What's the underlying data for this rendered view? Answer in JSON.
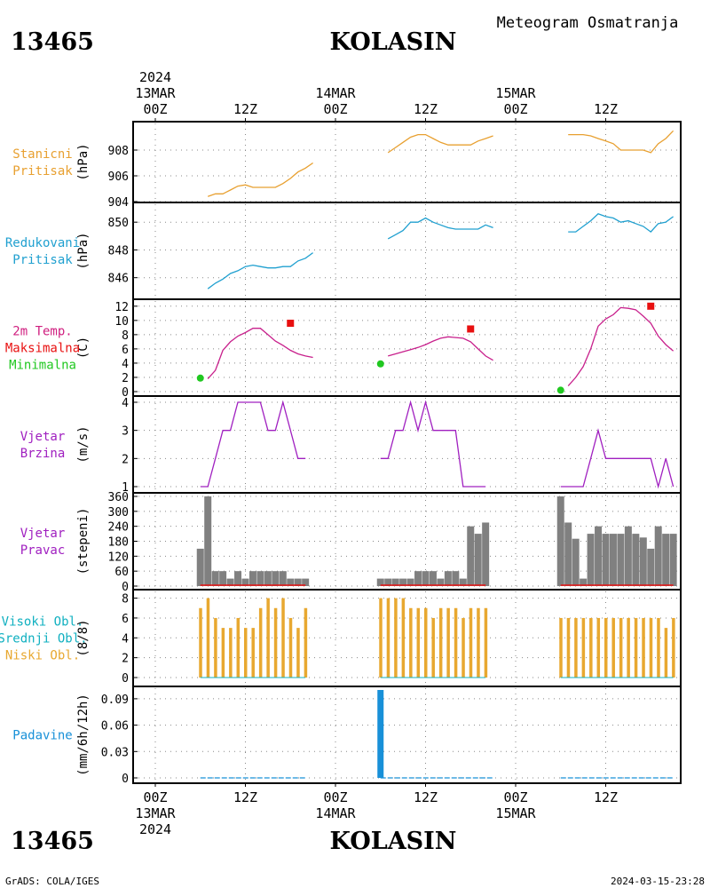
{
  "header": {
    "station_id": "13465",
    "station_name": "KOLASIN",
    "product": "Meteogram Osmatranja"
  },
  "footer": {
    "left": "GrADS: COLA/IGES",
    "right": "2024-03-15-23:28"
  },
  "time_axis": {
    "year": "2024",
    "day_labels": [
      "13MAR",
      "14MAR",
      "15MAR"
    ],
    "hour_labels": [
      "00Z",
      "12Z",
      "00Z",
      "12Z",
      "00Z",
      "12Z"
    ]
  },
  "colors": {
    "pressure_station": "#e8a030",
    "pressure_reduced": "#20a0d0",
    "temperature": "#c8208c",
    "temp_max": "#e81010",
    "temp_min": "#20c820",
    "wind_speed": "#a020c0",
    "wind_dir_bar": "#808080",
    "clouds": "#e8a830",
    "precipitation": "#1890d8"
  },
  "chart_data": [
    {
      "type": "line",
      "panel": "stanicni-pritisak",
      "labels": [
        "Stanicni",
        "Pritisak"
      ],
      "ylabel": "(hPa)",
      "ylim": [
        904,
        910
      ],
      "yticks": [
        904,
        906,
        908
      ],
      "series": [
        {
          "name": "day1",
          "x": [
            7,
            8,
            9,
            10,
            11,
            12,
            13,
            14,
            15,
            16,
            17,
            18,
            19,
            20,
            21
          ],
          "y": [
            904.4,
            904.6,
            904.6,
            904.9,
            905.2,
            905.3,
            905.1,
            905.1,
            905.1,
            905.1,
            905.4,
            905.8,
            906.3,
            906.6,
            907.0
          ]
        },
        {
          "name": "day2",
          "x": [
            31,
            32,
            33,
            34,
            35,
            36,
            37,
            38,
            39,
            40,
            41,
            42,
            43,
            44,
            45
          ],
          "y": [
            907.8,
            908.2,
            908.6,
            909.0,
            909.2,
            909.2,
            908.9,
            908.6,
            908.4,
            908.4,
            908.4,
            908.4,
            908.7,
            908.9,
            909.1
          ]
        },
        {
          "name": "day3",
          "x": [
            55,
            56,
            57,
            58,
            59,
            60,
            61,
            62,
            63,
            64,
            65,
            66,
            67,
            68,
            69
          ],
          "y": [
            909.2,
            909.2,
            909.2,
            909.1,
            908.9,
            908.7,
            908.5,
            908.0,
            908.0,
            908.0,
            908.0,
            907.8,
            908.5,
            908.9,
            909.5
          ]
        }
      ]
    },
    {
      "type": "line",
      "panel": "redukovani-pritisak",
      "labels": [
        "Redukovani",
        "Pritisak"
      ],
      "ylabel": "(hPa)",
      "ylim": [
        844.7,
        851.1
      ],
      "yticks": [
        846,
        848,
        850
      ],
      "series": [
        {
          "name": "day1",
          "x": [
            7,
            8,
            9,
            10,
            11,
            12,
            13,
            14,
            15,
            16,
            17,
            18,
            19,
            20,
            21
          ],
          "y": [
            845.2,
            845.6,
            845.9,
            846.3,
            846.5,
            846.8,
            846.9,
            846.8,
            846.7,
            846.7,
            846.8,
            846.8,
            847.2,
            847.4,
            847.8
          ]
        },
        {
          "name": "day2",
          "x": [
            31,
            32,
            33,
            34,
            35,
            36,
            37,
            38,
            39,
            40,
            41,
            42,
            43,
            44,
            45
          ],
          "y": [
            848.8,
            849.1,
            849.4,
            850.0,
            850.0,
            850.3,
            850.0,
            849.8,
            849.6,
            849.5,
            849.5,
            849.5,
            849.5,
            849.8,
            849.6
          ]
        },
        {
          "name": "day3",
          "x": [
            55,
            56,
            57,
            58,
            59,
            60,
            61,
            62,
            63,
            64,
            65,
            66,
            67,
            68,
            69
          ],
          "y": [
            849.3,
            849.3,
            849.7,
            850.1,
            850.6,
            850.4,
            850.3,
            850.0,
            850.1,
            849.9,
            849.7,
            849.3,
            849.9,
            850.0,
            850.4
          ]
        }
      ]
    },
    {
      "type": "line",
      "panel": "temperatura",
      "labels": [
        "2m Temp.",
        "Maksimalna",
        "Minimalna"
      ],
      "ylabel": "(C)",
      "ylim": [
        0,
        12.6
      ],
      "yticks": [
        0,
        2,
        4,
        6,
        8,
        10,
        12
      ],
      "series": [
        {
          "name": "day1",
          "x": [
            7,
            8,
            9,
            10,
            11,
            12,
            13,
            14,
            15,
            16,
            17,
            18,
            19,
            20,
            21
          ],
          "y": [
            1.8,
            3.0,
            5.8,
            7.0,
            7.8,
            8.3,
            8.9,
            8.9,
            8.0,
            7.1,
            6.5,
            5.8,
            5.3,
            5.0,
            4.8
          ]
        },
        {
          "name": "day2",
          "x": [
            31,
            32,
            33,
            34,
            35,
            36,
            37,
            38,
            39,
            40,
            41,
            42,
            43,
            44,
            45
          ],
          "y": [
            5.0,
            5.3,
            5.6,
            5.9,
            6.2,
            6.6,
            7.1,
            7.5,
            7.7,
            7.6,
            7.5,
            7.0,
            6.0,
            5.0,
            4.4
          ]
        },
        {
          "name": "day3",
          "x": [
            55,
            56,
            57,
            58,
            59,
            60,
            61,
            62,
            63,
            64,
            65,
            66,
            67,
            68,
            69
          ],
          "y": [
            0.8,
            2.0,
            3.5,
            6.0,
            9.2,
            10.2,
            10.8,
            11.8,
            11.7,
            11.5,
            10.6,
            9.6,
            7.8,
            6.6,
            5.7
          ]
        }
      ],
      "maxima": [
        {
          "x": 18,
          "y": 9.6
        },
        {
          "x": 42,
          "y": 8.8
        },
        {
          "x": 66,
          "y": 12.0
        }
      ],
      "minima": [
        {
          "x": 6,
          "y": 1.9
        },
        {
          "x": 30,
          "y": 3.9
        },
        {
          "x": 54,
          "y": 0.2
        }
      ]
    },
    {
      "type": "line",
      "panel": "vjetar-brzina",
      "labels": [
        "Vjetar",
        "Brzina"
      ],
      "ylabel": "(m/s)",
      "ylim": [
        1,
        4
      ],
      "yticks": [
        1,
        2,
        3,
        4
      ],
      "series": [
        {
          "name": "day1",
          "x": [
            6,
            7,
            8,
            9,
            10,
            11,
            12,
            13,
            14,
            15,
            16,
            17,
            18,
            19,
            20
          ],
          "y": [
            1,
            1,
            2,
            3,
            3,
            4,
            4,
            4,
            4,
            3,
            3,
            4,
            3,
            2,
            2
          ]
        },
        {
          "name": "day2",
          "x": [
            30,
            31,
            32,
            33,
            34,
            35,
            36,
            37,
            38,
            39,
            40,
            41,
            42,
            43,
            44
          ],
          "y": [
            2,
            2,
            3,
            3,
            4,
            3,
            4,
            3,
            3,
            3,
            3,
            1,
            1,
            1,
            1
          ]
        },
        {
          "name": "day3",
          "x": [
            54,
            55,
            56,
            57,
            58,
            59,
            60,
            61,
            62,
            63,
            64,
            65,
            66,
            67,
            68
          ],
          "y": [
            1,
            1,
            1,
            1,
            2,
            3,
            2,
            2,
            2,
            2,
            2,
            2,
            2,
            1,
            2
          ]
        },
        {
          "name": "day3b",
          "x": [
            68,
            69
          ],
          "y": [
            2,
            1
          ]
        }
      ]
    },
    {
      "type": "bar",
      "panel": "vjetar-pravac",
      "labels": [
        "Vjetar",
        "Pravac"
      ],
      "ylabel": "(stepeni)",
      "ylim": [
        0,
        360
      ],
      "yticks": [
        0,
        60,
        120,
        180,
        240,
        300,
        360
      ],
      "series": [
        {
          "name": "day1",
          "x": [
            6,
            7,
            8,
            9,
            10,
            11,
            12,
            13,
            14,
            15,
            16,
            17,
            18,
            19,
            20
          ],
          "values": [
            150,
            360,
            60,
            60,
            30,
            60,
            30,
            60,
            60,
            60,
            60,
            60,
            30,
            30,
            30
          ]
        },
        {
          "name": "day2",
          "x": [
            30,
            31,
            32,
            33,
            34,
            35,
            36,
            37,
            38,
            39,
            40,
            41,
            42,
            43,
            44
          ],
          "values": [
            30,
            30,
            30,
            30,
            30,
            60,
            60,
            60,
            30,
            60,
            60,
            30,
            240,
            210,
            255
          ]
        },
        {
          "name": "day3",
          "x": [
            54,
            55,
            56,
            57,
            58,
            59,
            60,
            61,
            62,
            63,
            64,
            65,
            66,
            67,
            68,
            69
          ],
          "values": [
            360,
            255,
            190,
            30,
            210,
            240,
            210,
            210,
            210,
            240,
            210,
            195,
            150,
            240,
            210,
            210
          ]
        }
      ]
    },
    {
      "type": "bar",
      "panel": "oblacnost",
      "labels": [
        "Visoki Obl.",
        "Srednji Obl.",
        "Niski Obl."
      ],
      "ylabel": "(8/8)",
      "ylim": [
        0,
        8.5
      ],
      "yticks": [
        0,
        2,
        4,
        6,
        8
      ],
      "series": [
        {
          "name": "day1",
          "x": [
            6,
            7,
            8,
            9,
            10,
            11,
            12,
            13,
            14,
            15,
            16,
            17,
            18,
            19,
            20
          ],
          "values": [
            7,
            8,
            6,
            5,
            5,
            6,
            5,
            5,
            7,
            8,
            7,
            8,
            6,
            5,
            7
          ]
        },
        {
          "name": "day2",
          "x": [
            30,
            31,
            32,
            33,
            34,
            35,
            36,
            37,
            38,
            39,
            40,
            41,
            42,
            43,
            44
          ],
          "values": [
            8,
            8,
            8,
            8,
            7,
            7,
            7,
            6,
            7,
            7,
            7,
            6,
            7,
            7,
            7
          ]
        },
        {
          "name": "day3",
          "x": [
            54,
            55,
            56,
            57,
            58,
            59,
            60,
            61,
            62,
            63,
            64,
            65,
            66,
            67,
            68,
            69
          ],
          "values": [
            6,
            6,
            6,
            6,
            6,
            6,
            6,
            6,
            6,
            6,
            6,
            6,
            6,
            6,
            5,
            6
          ]
        }
      ]
    },
    {
      "type": "bar",
      "panel": "padavine",
      "labels": [
        "Padavine"
      ],
      "ylabel": "(mm/6h/12h)",
      "ylim": [
        0,
        0.1
      ],
      "yticks": [
        0,
        0.03,
        0.06,
        0.09
      ],
      "ytick_labels": [
        "0",
        "0.03",
        "0.06",
        "0.09"
      ],
      "series": [
        {
          "name": "precip",
          "x": [
            30
          ],
          "values": [
            0.1
          ]
        }
      ],
      "zero_lines": [
        [
          6,
          20
        ],
        [
          30,
          45
        ],
        [
          54,
          69
        ]
      ]
    }
  ]
}
